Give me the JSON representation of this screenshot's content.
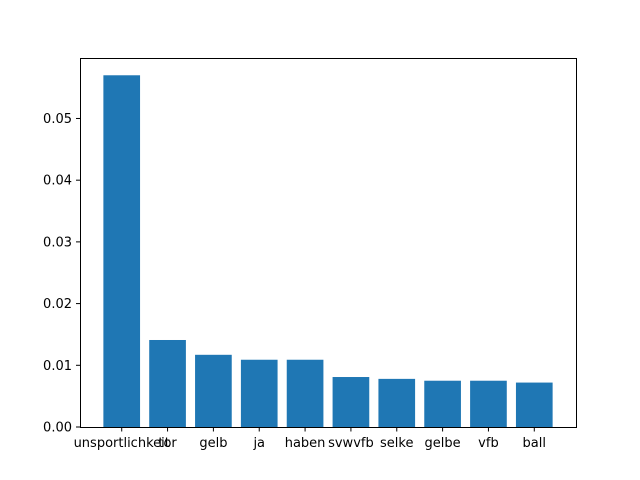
{
  "chart_data": {
    "type": "bar",
    "categories": [
      "unsportlichkeit",
      "tor",
      "gelb",
      "ja",
      "haben",
      "svwvfb",
      "selke",
      "gelbe",
      "vfb",
      "ball"
    ],
    "values": [
      0.057,
      0.0141,
      0.0117,
      0.0109,
      0.0109,
      0.0081,
      0.0078,
      0.0075,
      0.0075,
      0.0072
    ],
    "ylim": [
      0,
      0.0598
    ],
    "yticks": [
      "0.00",
      "0.01",
      "0.02",
      "0.03",
      "0.04",
      "0.05"
    ],
    "bar_color": "#1f77b4",
    "title": "",
    "xlabel": "",
    "ylabel": "",
    "grid": false
  }
}
